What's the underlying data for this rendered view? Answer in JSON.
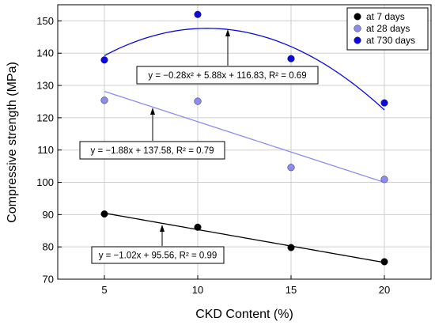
{
  "chart_data": {
    "type": "scatter",
    "title": "",
    "xlabel": "CKD Content (%)",
    "ylabel": "Compressive strength (MPa)",
    "xlim": [
      2.5,
      22.5
    ],
    "ylim": [
      70,
      155
    ],
    "x_ticks": [
      5,
      10,
      15,
      20
    ],
    "y_ticks": [
      70,
      80,
      90,
      100,
      110,
      120,
      130,
      140,
      150
    ],
    "grid": true,
    "legend_position": "top-right",
    "series": [
      {
        "name": "at 7 days",
        "color": "#000000",
        "x": [
          5,
          10,
          15,
          20
        ],
        "y": [
          90.2,
          86.1,
          79.8,
          75.4
        ],
        "fit": {
          "type": "linear",
          "coefficients": [
            -1.02,
            95.56
          ],
          "equation": "y = −1.02x + 95.56, R² = 0.99"
        }
      },
      {
        "name": "at 28 days",
        "color": "#8b8cf3",
        "x": [
          5,
          10,
          15,
          20
        ],
        "y": [
          125.4,
          125.1,
          104.6,
          100.9
        ],
        "fit": {
          "type": "linear",
          "coefficients": [
            -1.88,
            137.58
          ],
          "equation": "y = −1.88x + 137.58, R² = 0.79"
        }
      },
      {
        "name": "at 730 days",
        "color": "#0a0adc",
        "x": [
          5,
          10,
          15,
          20
        ],
        "y": [
          137.9,
          152.0,
          138.3,
          124.6
        ],
        "fit": {
          "type": "quadratic",
          "coefficients": [
            -0.28,
            5.88,
            116.83
          ],
          "equation": "y = −0.28x² + 5.88x + 116.83, R² = 0.69"
        }
      }
    ]
  }
}
